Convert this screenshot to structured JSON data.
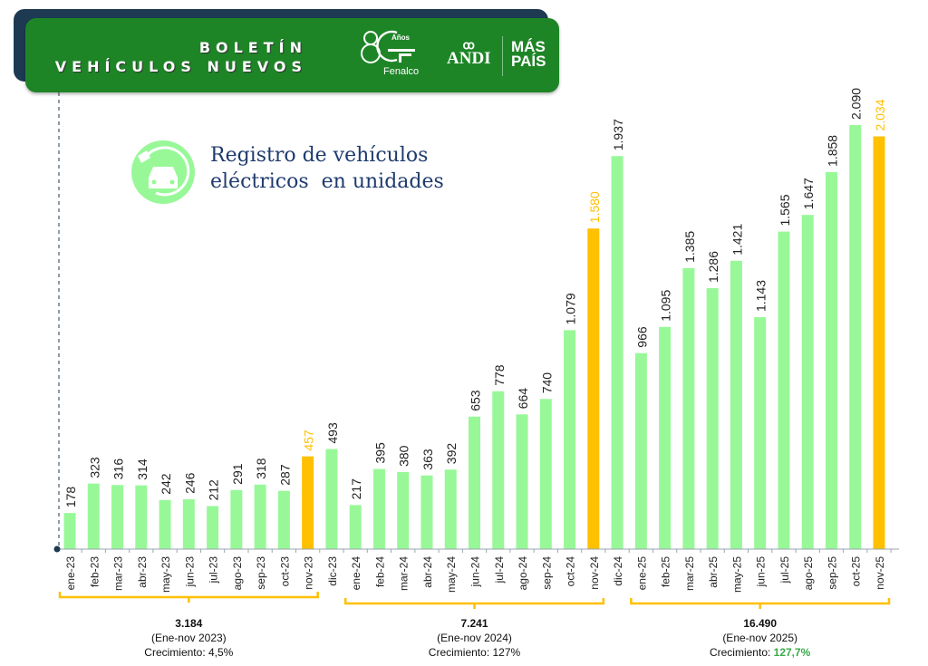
{
  "header": {
    "title_line1": "BOLETÍN",
    "title_line2": "VEHÍCULOS NUEVOS",
    "logos": [
      "80 Años Fenalco",
      "ANDI",
      "MÁS PAÍS"
    ]
  },
  "colors": {
    "banner": "#1e8527",
    "bar": "#98f898",
    "highlight": "#ffc000",
    "title": "#1f3b6e",
    "growth_highlight": "#3aaa4a"
  },
  "chart_data": {
    "type": "bar",
    "title_line1": "Registro de vehículos",
    "title_line2": "eléctricos  en unidades",
    "categories": [
      "ene-23",
      "feb-23",
      "mar-23",
      "abr-23",
      "may-23",
      "jun-23",
      "jul-23",
      "ago-23",
      "sep-23",
      "oct-23",
      "nov-23",
      "dic-23",
      "ene-24",
      "feb-24",
      "mar-24",
      "abr-24",
      "may-24",
      "jun-24",
      "jul-24",
      "ago-24",
      "sep-24",
      "oct-24",
      "nov-24",
      "dic-24",
      "ene-25",
      "feb-25",
      "mar-25",
      "abr-25",
      "may-25",
      "jun-25",
      "jul-25",
      "ago-25",
      "sep-25",
      "oct-25",
      "nov-25"
    ],
    "values": [
      178,
      323,
      316,
      314,
      242,
      246,
      212,
      291,
      318,
      287,
      457,
      493,
      217,
      395,
      380,
      363,
      392,
      653,
      778,
      664,
      740,
      1079,
      1580,
      1937,
      966,
      1095,
      1385,
      1286,
      1421,
      1143,
      1565,
      1647,
      1858,
      2090,
      2034
    ],
    "value_labels": [
      "178",
      "323",
      "316",
      "314",
      "242",
      "246",
      "212",
      "291",
      "318",
      "287",
      "457",
      "493",
      "217",
      "395",
      "380",
      "363",
      "392",
      "653",
      "778",
      "664",
      "740",
      "1.079",
      "1.580",
      "1.937",
      "966",
      "1.095",
      "1.385",
      "1.286",
      "1.421",
      "1.143",
      "1.565",
      "1.647",
      "1.858",
      "2.090",
      "2.034"
    ],
    "highlighted": [
      "nov-23",
      "nov-24",
      "nov-25"
    ],
    "ylim": [
      0,
      2200
    ],
    "grid": false,
    "groups": [
      {
        "from": "ene-23",
        "to": "nov-23",
        "total": "3.184",
        "period": "(Ene-nov 2023)",
        "growth_label": "Crecimiento: ",
        "growth": "4,5%"
      },
      {
        "from": "ene-24",
        "to": "nov-24",
        "total": "7.241",
        "period": "(Ene-nov 2024)",
        "growth_label": "Crecimiento: ",
        "growth": "127%"
      },
      {
        "from": "ene-25",
        "to": "nov-25",
        "total": "16.490",
        "period": "(Ene-nov 2025)",
        "growth_label": "Crecimiento: ",
        "growth": "127,7%"
      }
    ]
  }
}
